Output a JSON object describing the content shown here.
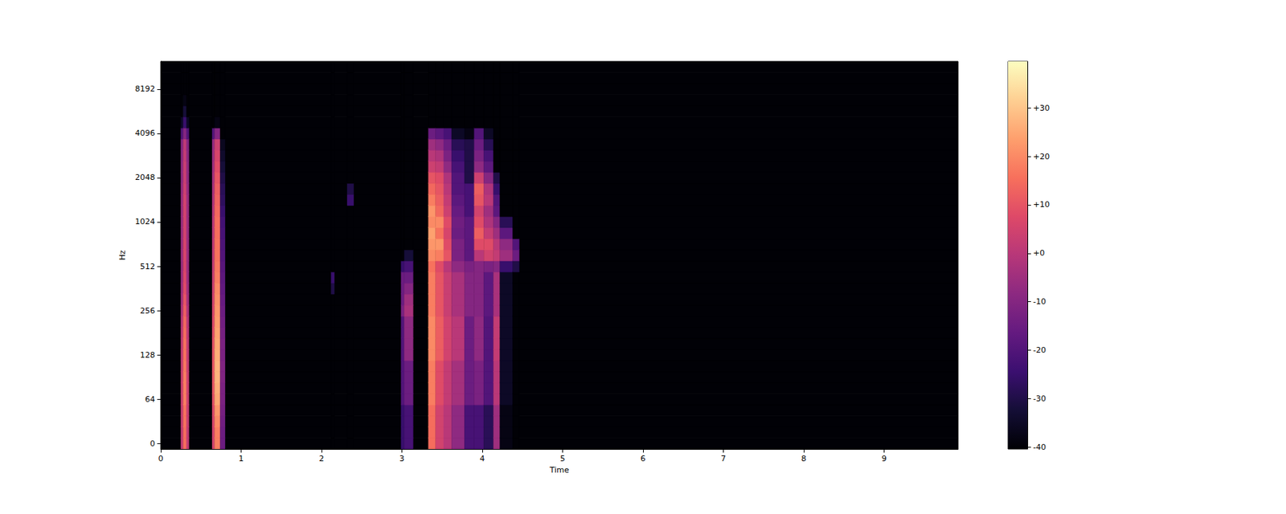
{
  "chart_data": {
    "type": "heatmap",
    "x_label": "Time",
    "y_label": "Hz",
    "xlim": [
      0,
      9.92
    ],
    "xticks": [
      0,
      1,
      2,
      3,
      4,
      5,
      6,
      7,
      8,
      9
    ],
    "categories": [
      "0",
      null,
      null,
      null,
      "64",
      null,
      null,
      null,
      "128",
      null,
      null,
      null,
      "256",
      null,
      null,
      null,
      "512",
      null,
      null,
      null,
      "1024",
      null,
      null,
      null,
      "2048",
      null,
      null,
      null,
      "4096",
      null,
      null,
      null,
      "8192",
      null,
      null
    ],
    "cells": [
      [
        0,
        9.92,
        [
          -40,
          -40,
          -40,
          -40,
          -40,
          -40,
          -40,
          -40,
          -40,
          -40,
          -40,
          -40,
          -40,
          -40,
          -40,
          -40,
          -40,
          -40,
          -40,
          -40,
          -40,
          -40,
          -40,
          -40,
          -40,
          -40,
          -40,
          -40,
          -40,
          -40,
          -40,
          -40,
          -40,
          -40,
          -40
        ]
      ],
      [
        0.25,
        0.28,
        [
          2,
          2,
          3,
          3,
          4,
          4,
          4,
          3,
          2,
          2,
          1,
          0,
          -2,
          -4,
          -5,
          -6,
          -6,
          -6,
          -6,
          -6,
          -6,
          -6,
          -6,
          -7,
          -8,
          -8,
          -9,
          -10,
          -20,
          -35,
          -40,
          -40,
          -40,
          -40,
          -40
        ]
      ],
      [
        0.28,
        0.32,
        [
          15,
          15,
          16,
          16,
          18,
          18,
          18,
          17,
          16,
          16,
          15,
          14,
          12,
          10,
          8,
          7,
          6,
          6,
          6,
          5,
          5,
          5,
          5,
          4,
          3,
          3,
          2,
          1,
          -10,
          -25,
          -32,
          -38,
          -40,
          -40,
          -40
        ]
      ],
      [
        0.32,
        0.35,
        [
          2,
          2,
          3,
          3,
          4,
          4,
          4,
          3,
          2,
          2,
          1,
          0,
          -2,
          -4,
          -5,
          -6,
          -6,
          -6,
          -6,
          -6,
          -6,
          -6,
          -6,
          -7,
          -8,
          -8,
          -9,
          -10,
          -20,
          -35,
          -40,
          -40,
          -40,
          -40,
          -40
        ]
      ],
      [
        0.64,
        0.67,
        [
          5,
          5,
          6,
          7,
          9,
          10,
          10,
          10,
          9,
          9,
          8,
          7,
          6,
          5,
          4,
          3,
          2,
          1,
          1,
          0,
          0,
          -1,
          -2,
          -3,
          -4,
          -5,
          -6,
          -7,
          -20,
          -40,
          -40,
          -40,
          -40,
          -40,
          -40
        ]
      ],
      [
        0.67,
        0.74,
        [
          18,
          18,
          20,
          22,
          25,
          26,
          27,
          27,
          26,
          25,
          24,
          23,
          22,
          21,
          20,
          18,
          17,
          16,
          16,
          15,
          15,
          14,
          13,
          12,
          10,
          8,
          6,
          4,
          -10,
          -38,
          -40,
          -40,
          -40,
          -40,
          -40
        ]
      ],
      [
        0.74,
        0.8,
        [
          -15,
          -15,
          -14,
          -13,
          -12,
          -12,
          -11,
          -11,
          -12,
          -12,
          -13,
          -14,
          -15,
          -16,
          -17,
          -18,
          -19,
          -20,
          -21,
          -22,
          -23,
          -25,
          -27,
          -28,
          -30,
          -32,
          -34,
          -36,
          -40,
          -40,
          -40,
          -40,
          -40,
          -40,
          -40
        ]
      ],
      [
        2.12,
        2.16,
        [
          -40,
          -40,
          -40,
          -40,
          -40,
          -40,
          -40,
          -40,
          -40,
          -40,
          -40,
          -40,
          -40,
          -40,
          -30,
          -25,
          -40,
          -40,
          -40,
          -40,
          -40,
          -40,
          -40,
          -40,
          -40,
          -40,
          -40,
          -40,
          -40,
          -40,
          -40,
          -40,
          -40,
          -40,
          -40
        ]
      ],
      [
        2.32,
        2.4,
        [
          -40,
          -40,
          -40,
          -40,
          -40,
          -40,
          -40,
          -40,
          -40,
          -40,
          -40,
          -40,
          -40,
          -40,
          -40,
          -40,
          -40,
          -40,
          -40,
          -40,
          -40,
          -40,
          -25,
          -30,
          -40,
          -40,
          -40,
          -40,
          -40,
          -40,
          -40,
          -40,
          -40,
          -40,
          -40
        ]
      ],
      [
        2.99,
        3.03,
        [
          -25,
          -25,
          -25,
          -25,
          -20,
          -20,
          -20,
          -20,
          -20,
          -20,
          -20,
          -20,
          -12,
          -15,
          -15,
          -15,
          -25,
          -40,
          -40,
          -40,
          -40,
          -40,
          -40,
          -40,
          -40,
          -40,
          -40,
          -40,
          -40,
          -40,
          -40,
          -40,
          -40,
          -40,
          -40
        ]
      ],
      [
        3.03,
        3.14,
        [
          -22,
          -22,
          -22,
          -22,
          -15,
          -15,
          -15,
          -15,
          -8,
          -8,
          -8,
          -8,
          -3,
          -5,
          -10,
          -15,
          -22,
          -32,
          -40,
          -40,
          -40,
          -40,
          -40,
          -40,
          -40,
          -40,
          -40,
          -40,
          -40,
          -40,
          -40,
          -40,
          -40,
          -40,
          -40
        ]
      ],
      [
        3.33,
        3.42,
        [
          15,
          15,
          15,
          15,
          18,
          18,
          18,
          18,
          20,
          20,
          20,
          20,
          18,
          18,
          18,
          18,
          16,
          20,
          22,
          24,
          20,
          22,
          18,
          14,
          10,
          4,
          0,
          -5,
          -15,
          -40,
          -40,
          -40,
          -40,
          -40,
          -40
        ]
      ],
      [
        3.42,
        3.52,
        [
          5,
          5,
          5,
          5,
          8,
          8,
          8,
          8,
          12,
          12,
          12,
          12,
          10,
          10,
          10,
          10,
          8,
          18,
          22,
          16,
          20,
          14,
          12,
          10,
          8,
          2,
          -2,
          -8,
          -18,
          -40,
          -40,
          -40,
          -40,
          -40,
          -40
        ]
      ],
      [
        3.52,
        3.62,
        [
          0,
          0,
          0,
          0,
          2,
          2,
          2,
          2,
          5,
          5,
          5,
          5,
          3,
          3,
          3,
          3,
          0,
          10,
          8,
          6,
          8,
          4,
          2,
          0,
          -2,
          -8,
          -12,
          -15,
          -22,
          -40,
          -40,
          -40,
          -40,
          -40,
          -40
        ]
      ],
      [
        3.62,
        3.78,
        [
          -8,
          -8,
          -8,
          -8,
          -4,
          -4,
          -4,
          -4,
          0,
          0,
          0,
          0,
          -3,
          -3,
          -3,
          -3,
          -8,
          -12,
          -12,
          -15,
          -14,
          -16,
          -18,
          -20,
          -20,
          -22,
          -25,
          -28,
          -35,
          -40,
          -40,
          -40,
          -40,
          -40,
          -40
        ]
      ],
      [
        3.78,
        3.9,
        [
          -22,
          -22,
          -22,
          -22,
          -15,
          -15,
          -15,
          -15,
          -15,
          -15,
          -15,
          -15,
          -10,
          -10,
          -10,
          -10,
          -12,
          -18,
          -18,
          -18,
          -18,
          -22,
          -22,
          -22,
          -30,
          -30,
          -30,
          -30,
          -38,
          -40,
          -40,
          -40,
          -40,
          -40,
          -40
        ]
      ],
      [
        3.9,
        4.02,
        [
          -22,
          -22,
          -22,
          -22,
          -12,
          -12,
          -12,
          -12,
          -8,
          -8,
          -8,
          -8,
          -10,
          -10,
          -10,
          -10,
          -10,
          0,
          8,
          12,
          8,
          5,
          10,
          12,
          4,
          -8,
          -12,
          -15,
          -20,
          -40,
          -40,
          -40,
          -40,
          -40,
          -40
        ]
      ],
      [
        4.02,
        4.14,
        [
          -28,
          -28,
          -28,
          -28,
          -20,
          -20,
          -20,
          -20,
          -20,
          -20,
          -20,
          -20,
          -18,
          -18,
          -18,
          -18,
          -12,
          5,
          8,
          2,
          -2,
          -5,
          0,
          -2,
          -10,
          -18,
          -22,
          -28,
          -35,
          -40,
          -40,
          -40,
          -40,
          -40,
          -40
        ]
      ],
      [
        4.14,
        4.22,
        [
          -5,
          -5,
          -5,
          -5,
          0,
          0,
          0,
          0,
          2,
          2,
          2,
          2,
          -3,
          -3,
          -3,
          -3,
          -10,
          2,
          0,
          -5,
          -10,
          -18,
          -20,
          -25,
          -30,
          -40,
          -40,
          -40,
          -40,
          -40,
          -40,
          -40,
          -40,
          -40,
          -40
        ]
      ],
      [
        4.22,
        4.38,
        [
          -38,
          -38,
          -38,
          -38,
          -35,
          -35,
          -35,
          -35,
          -35,
          -35,
          -35,
          -35,
          -35,
          -35,
          -35,
          -35,
          -25,
          -5,
          -8,
          -18,
          -28,
          -40,
          -40,
          -40,
          -40,
          -40,
          -40,
          -40,
          -40,
          -40,
          -40,
          -40,
          -40,
          -40,
          -40
        ]
      ],
      [
        4.38,
        4.46,
        [
          -40,
          -40,
          -40,
          -40,
          -40,
          -40,
          -40,
          -40,
          -40,
          -40,
          -40,
          -40,
          -40,
          -40,
          -40,
          -40,
          -30,
          -15,
          -20,
          -40,
          -40,
          -40,
          -40,
          -40,
          -40,
          -40,
          -40,
          -40,
          -40,
          -40,
          -40,
          -40,
          -40,
          -40,
          -40
        ]
      ]
    ],
    "colorbar_range": [
      -40.4,
      39.6
    ],
    "colorbar_ticks": [
      {
        "value": 30,
        "label": "+30"
      },
      {
        "value": 20,
        "label": "+20"
      },
      {
        "value": 10,
        "label": "+10"
      },
      {
        "value": 0,
        "label": "+0"
      },
      -10,
      -20,
      -30,
      -40
    ]
  }
}
